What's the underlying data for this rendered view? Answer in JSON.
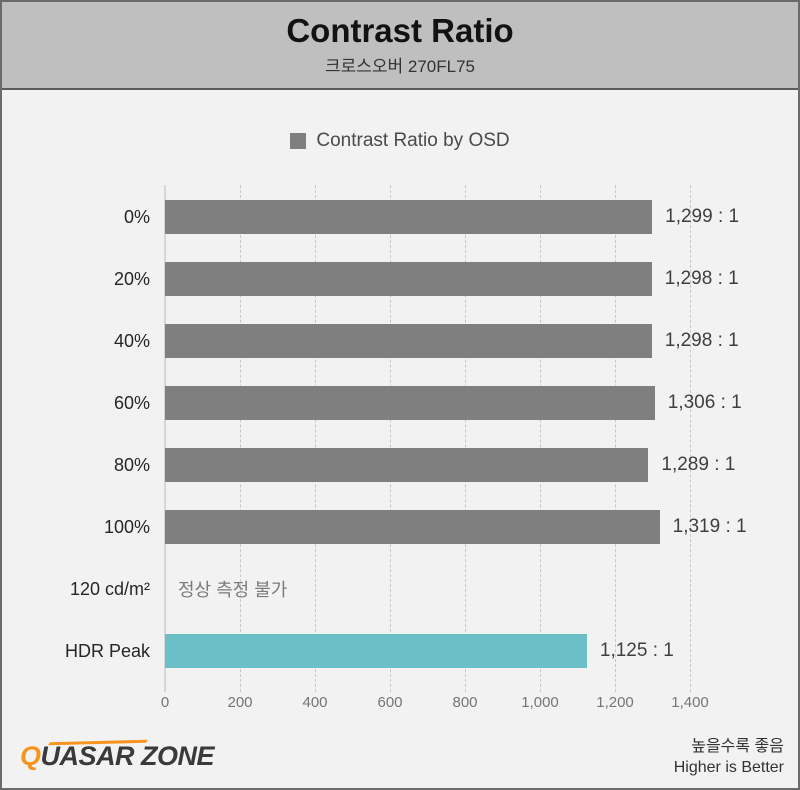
{
  "header": {
    "title": "Contrast Ratio",
    "subtitle": "크로스오버 270FL75"
  },
  "legend": {
    "label": "Contrast Ratio by OSD",
    "swatch_color": "#7f7f7f"
  },
  "chart_data": {
    "type": "bar",
    "orientation": "horizontal",
    "title": "Contrast Ratio",
    "subtitle": "크로스오버 270FL75",
    "legend": "Contrast Ratio by OSD",
    "categories": [
      "0%",
      "20%",
      "40%",
      "60%",
      "80%",
      "100%",
      "120 cd/m²",
      "HDR Peak"
    ],
    "values": [
      1299,
      1298,
      1298,
      1306,
      1289,
      1319,
      null,
      1125
    ],
    "value_labels": [
      "1,299 : 1",
      "1,298 : 1",
      "1,298 : 1",
      "1,306 : 1",
      "1,289 : 1",
      "1,319 : 1",
      "정상 측정 불가",
      "1,125 : 1"
    ],
    "bar_colors": [
      "gray",
      "gray",
      "gray",
      "gray",
      "gray",
      "gray",
      null,
      "teal"
    ],
    "colors": {
      "gray": "#7f7f7f",
      "teal": "#6bc0c7"
    },
    "xlim": [
      0,
      1400
    ],
    "xticks": [
      0,
      200,
      400,
      600,
      800,
      1000,
      1200,
      1400
    ],
    "xtick_labels": [
      "0",
      "200",
      "400",
      "600",
      "800",
      "1,000",
      "1,200",
      "1,400"
    ],
    "grid": "dashed-vertical",
    "legend_position": "top-center",
    "note": "higher is better"
  },
  "footer": {
    "logo_q": "Q",
    "logo_rest": "UASAR ZONE",
    "note_ko": "높을수록 좋음",
    "note_en": "Higher is Better"
  }
}
